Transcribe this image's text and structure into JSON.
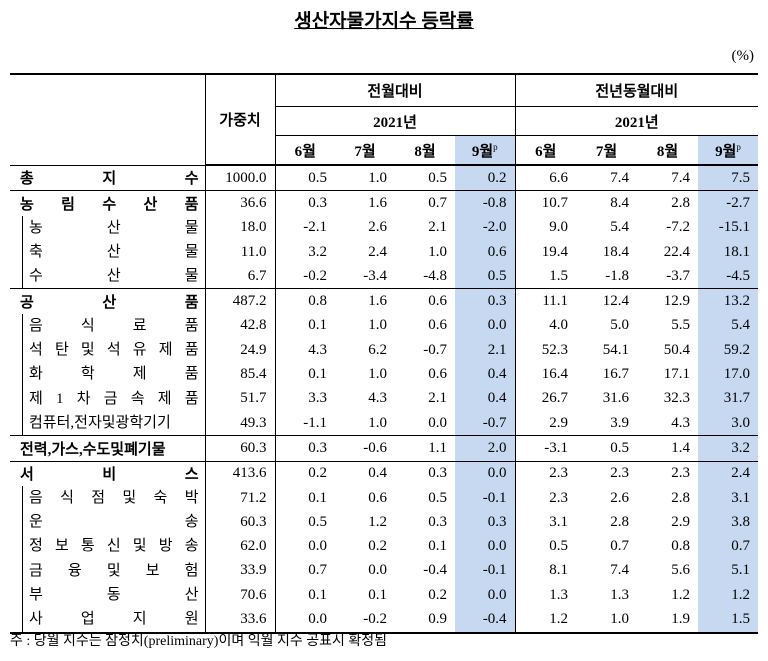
{
  "title": "생산자물가지수 등락률",
  "unit": "(%)",
  "header": {
    "weight": "가중치",
    "mom": "전월대비",
    "yoy": "전년동월대비",
    "year": "2021년",
    "months": [
      "6월",
      "7월",
      "8월",
      "9월"
    ],
    "prelim_mark": "p"
  },
  "sections": [
    {
      "label": "총 지 수",
      "weight": "1000.0",
      "values": [
        "0.5",
        "1.0",
        "0.5",
        "0.2",
        "6.6",
        "7.4",
        "7.4",
        "7.5"
      ],
      "items": []
    },
    {
      "label": "농 림 수 산 품",
      "weight": "36.6",
      "values": [
        "0.3",
        "1.6",
        "0.7",
        "-0.8",
        "10.7",
        "8.4",
        "2.8",
        "-2.7"
      ],
      "items": [
        {
          "label": "농 산 물",
          "weight": "18.0",
          "values": [
            "-2.1",
            "2.6",
            "2.1",
            "-2.0",
            "9.0",
            "5.4",
            "-7.2",
            "-15.1"
          ]
        },
        {
          "label": "축 산 물",
          "weight": "11.0",
          "values": [
            "3.2",
            "2.4",
            "1.0",
            "0.6",
            "19.4",
            "18.4",
            "22.4",
            "18.1"
          ]
        },
        {
          "label": "수 산 물",
          "weight": "6.7",
          "values": [
            "-0.2",
            "-3.4",
            "-4.8",
            "0.5",
            "1.5",
            "-1.8",
            "-3.7",
            "-4.5"
          ]
        }
      ]
    },
    {
      "label": "공 산 품",
      "weight": "487.2",
      "values": [
        "0.8",
        "1.6",
        "0.6",
        "0.3",
        "11.1",
        "12.4",
        "12.9",
        "13.2"
      ],
      "items": [
        {
          "label": "음 식 료 품",
          "weight": "42.8",
          "values": [
            "0.1",
            "1.0",
            "0.6",
            "0.0",
            "4.0",
            "5.0",
            "5.5",
            "5.4"
          ]
        },
        {
          "label": "석 탄 및 석 유 제 품",
          "weight": "24.9",
          "values": [
            "4.3",
            "6.2",
            "-0.7",
            "2.1",
            "52.3",
            "54.1",
            "50.4",
            "59.2"
          ]
        },
        {
          "label": "화 학 제 품",
          "weight": "85.4",
          "values": [
            "0.1",
            "1.0",
            "0.6",
            "0.4",
            "16.4",
            "16.7",
            "17.1",
            "17.0"
          ]
        },
        {
          "label": "제 1 차 금 속 제 품",
          "weight": "51.7",
          "values": [
            "3.3",
            "4.3",
            "2.1",
            "0.4",
            "26.7",
            "31.6",
            "32.3",
            "31.7"
          ]
        },
        {
          "label": "컴퓨터,전자및광학기기",
          "weight": "49.3",
          "values": [
            "-1.1",
            "1.0",
            "0.0",
            "-0.7",
            "2.9",
            "3.9",
            "4.3",
            "3.0"
          ]
        }
      ]
    },
    {
      "label": "전력,가스,수도및폐기물",
      "weight": "60.3",
      "values": [
        "0.3",
        "-0.6",
        "1.1",
        "2.0",
        "-3.1",
        "0.5",
        "1.4",
        "3.2"
      ],
      "items": []
    },
    {
      "label": "서 비 스",
      "weight": "413.6",
      "values": [
        "0.2",
        "0.4",
        "0.3",
        "0.0",
        "2.3",
        "2.3",
        "2.3",
        "2.4"
      ],
      "items": [
        {
          "label": "음 식 점 및 숙 박",
          "weight": "71.2",
          "values": [
            "0.1",
            "0.6",
            "0.5",
            "-0.1",
            "2.3",
            "2.6",
            "2.8",
            "3.1"
          ]
        },
        {
          "label": "운 송",
          "weight": "60.3",
          "values": [
            "0.5",
            "1.2",
            "0.3",
            "0.3",
            "3.1",
            "2.8",
            "2.9",
            "3.8"
          ]
        },
        {
          "label": "정 보 통 신 및 방 송",
          "weight": "62.0",
          "values": [
            "0.0",
            "0.2",
            "0.1",
            "0.0",
            "0.5",
            "0.7",
            "0.8",
            "0.7"
          ]
        },
        {
          "label": "금 융 및 보 험",
          "weight": "33.9",
          "values": [
            "0.7",
            "0.0",
            "-0.4",
            "-0.1",
            "8.1",
            "7.4",
            "5.6",
            "5.1"
          ]
        },
        {
          "label": "부 동 산",
          "weight": "70.6",
          "values": [
            "0.1",
            "0.1",
            "0.2",
            "0.0",
            "1.3",
            "1.3",
            "1.2",
            "1.2"
          ]
        },
        {
          "label": "사 업 지 원",
          "weight": "33.6",
          "values": [
            "0.0",
            "-0.2",
            "0.9",
            "-0.4",
            "1.2",
            "1.0",
            "1.9",
            "1.5"
          ]
        }
      ]
    }
  ],
  "footnote": "주 : 당월 지수는 잠정치(preliminary)이며 익월 지수 공표시 확정됨"
}
